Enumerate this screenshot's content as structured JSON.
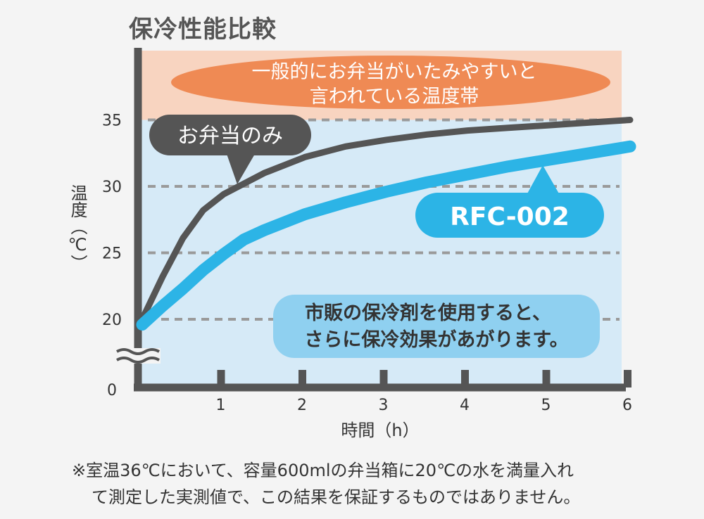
{
  "title": "保冷性能比較",
  "footnote": {
    "line1": "※室温36℃において、容量600mlの弁当箱に20℃の水を満量入れ",
    "line2": "て測定した実測値で、この結果を保証するものではありません。"
  },
  "colors": {
    "danger_band": "#f8d4c0",
    "chart_bg": "#d6eaf7",
    "axis": "#555555",
    "grid": "#9a9a9a",
    "bento_only": "#555555",
    "rfc": "#2cb4e6",
    "danger_bubble": "#ef8a54",
    "tip_bubble": "#8fd0f0",
    "text_dark": "#333333"
  },
  "chart_data": {
    "type": "line",
    "xlabel": "時間（h）",
    "ylabel": "温度（℃）",
    "x_ticks": [
      "1",
      "2",
      "3",
      "4",
      "5",
      "6"
    ],
    "y_ticks": [
      "20",
      "25",
      "30",
      "35"
    ],
    "y_zero_label": "0",
    "xlim": [
      0,
      6
    ],
    "ylim": [
      18,
      37
    ],
    "danger_band": [
      35,
      37
    ],
    "grid": true,
    "series": [
      {
        "name": "お弁当のみ",
        "color": "#555555",
        "x": [
          0,
          0.25,
          0.5,
          0.75,
          1,
          1.5,
          2,
          2.5,
          3,
          3.5,
          4,
          4.5,
          5,
          5.5,
          6
        ],
        "y": [
          20,
          23.2,
          26.1,
          28.2,
          29.4,
          31.0,
          32.2,
          33.0,
          33.5,
          33.9,
          34.2,
          34.4,
          34.6,
          34.8,
          35.0
        ]
      },
      {
        "name": "RFC-002",
        "color": "#2cb4e6",
        "x": [
          0,
          0.25,
          0.5,
          0.75,
          1,
          1.25,
          1.5,
          2,
          2.5,
          3,
          3.5,
          4,
          4.5,
          5,
          5.5,
          6
        ],
        "y": [
          19.6,
          21.0,
          22.3,
          23.7,
          24.9,
          26.0,
          26.7,
          27.9,
          28.8,
          29.6,
          30.3,
          30.9,
          31.5,
          32.0,
          32.5,
          33.0
        ]
      }
    ],
    "annotations": {
      "danger": [
        "一般的にお弁当がいたみやすいと",
        "言われている温度帯"
      ],
      "bento_label": "お弁当のみ",
      "rfc_label": "RFC-002",
      "tip": [
        "市販の保冷剤を使用すると、",
        "さらに保冷効果があがります。"
      ]
    }
  }
}
